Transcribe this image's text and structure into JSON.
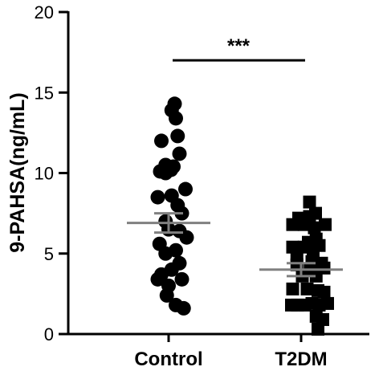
{
  "chart_data": {
    "type": "scatter",
    "ylabel": "9-PAHSA(ng/mL)",
    "ylim": [
      0,
      20
    ],
    "yticks": [
      "0",
      "5",
      "10",
      "15",
      "20"
    ],
    "categories": [
      "Control",
      "T2DM"
    ],
    "series": [
      {
        "name": "Control",
        "marker": "circle",
        "color": "#000000",
        "mean": 6.9,
        "sem": 0.6,
        "points": [
          {
            "x": 0.1,
            "y": 14.3
          },
          {
            "x": 0.05,
            "y": 13.9
          },
          {
            "x": 0.12,
            "y": 13.4
          },
          {
            "x": -0.12,
            "y": 12.0
          },
          {
            "x": 0.15,
            "y": 12.3
          },
          {
            "x": 0.18,
            "y": 11.2
          },
          {
            "x": -0.05,
            "y": 10.5
          },
          {
            "x": 0.08,
            "y": 10.4
          },
          {
            "x": -0.14,
            "y": 10.1
          },
          {
            "x": -0.05,
            "y": 10.0
          },
          {
            "x": 0.04,
            "y": 10.2
          },
          {
            "x": 0.28,
            "y": 9.0
          },
          {
            "x": 0.05,
            "y": 8.6
          },
          {
            "x": -0.18,
            "y": 8.5
          },
          {
            "x": 0.15,
            "y": 8.0
          },
          {
            "x": 0.22,
            "y": 7.5
          },
          {
            "x": -0.05,
            "y": 7.0
          },
          {
            "x": 0.0,
            "y": 6.5
          },
          {
            "x": 0.18,
            "y": 6.4
          },
          {
            "x": 0.3,
            "y": 6.0
          },
          {
            "x": 0.12,
            "y": 5.2
          },
          {
            "x": -0.15,
            "y": 5.6
          },
          {
            "x": -0.05,
            "y": 5.0
          },
          {
            "x": 0.18,
            "y": 4.4
          },
          {
            "x": 0.05,
            "y": 4.0
          },
          {
            "x": -0.12,
            "y": 3.7
          },
          {
            "x": 0.22,
            "y": 3.4
          },
          {
            "x": -0.18,
            "y": 3.4
          },
          {
            "x": 0.0,
            "y": 3.0
          },
          {
            "x": -0.03,
            "y": 2.4
          },
          {
            "x": 0.12,
            "y": 1.8
          },
          {
            "x": 0.25,
            "y": 1.6
          }
        ]
      },
      {
        "name": "T2DM",
        "marker": "square",
        "color": "#000000",
        "mean": 4.0,
        "sem": 0.4,
        "points": [
          {
            "x": 0.14,
            "y": 8.2
          },
          {
            "x": -0.04,
            "y": 7.2
          },
          {
            "x": 0.14,
            "y": 7.3
          },
          {
            "x": 0.24,
            "y": 7.5
          },
          {
            "x": -0.14,
            "y": 6.8
          },
          {
            "x": 0.05,
            "y": 6.8
          },
          {
            "x": 0.22,
            "y": 6.6
          },
          {
            "x": 0.4,
            "y": 6.8
          },
          {
            "x": 0.25,
            "y": 5.9
          },
          {
            "x": 0.12,
            "y": 5.7
          },
          {
            "x": -0.14,
            "y": 5.4
          },
          {
            "x": 0.05,
            "y": 5.4
          },
          {
            "x": 0.3,
            "y": 5.5
          },
          {
            "x": 0.2,
            "y": 5.0
          },
          {
            "x": -0.07,
            "y": 4.9
          },
          {
            "x": 0.34,
            "y": 4.4
          },
          {
            "x": 0.18,
            "y": 4.5
          },
          {
            "x": 0.38,
            "y": 4.1
          },
          {
            "x": -0.07,
            "y": 4.3
          },
          {
            "x": 0.15,
            "y": 4.0
          },
          {
            "x": 0.25,
            "y": 3.6
          },
          {
            "x": 0.02,
            "y": 3.6
          },
          {
            "x": -0.14,
            "y": 2.8
          },
          {
            "x": 0.1,
            "y": 2.8
          },
          {
            "x": 0.28,
            "y": 2.7
          },
          {
            "x": 0.38,
            "y": 2.6
          },
          {
            "x": -0.16,
            "y": 1.8
          },
          {
            "x": -0.06,
            "y": 1.8
          },
          {
            "x": 0.06,
            "y": 1.8
          },
          {
            "x": 0.18,
            "y": 1.9
          },
          {
            "x": 0.3,
            "y": 1.8
          },
          {
            "x": 0.44,
            "y": 1.9
          },
          {
            "x": 0.36,
            "y": 0.9
          },
          {
            "x": 0.25,
            "y": 1.1
          },
          {
            "x": 0.28,
            "y": 0.3
          }
        ]
      }
    ],
    "significance": {
      "label": "***",
      "between": [
        "Control",
        "T2DM"
      ],
      "y": 17
    },
    "grid": false,
    "mean_bar_color": "#808080"
  }
}
